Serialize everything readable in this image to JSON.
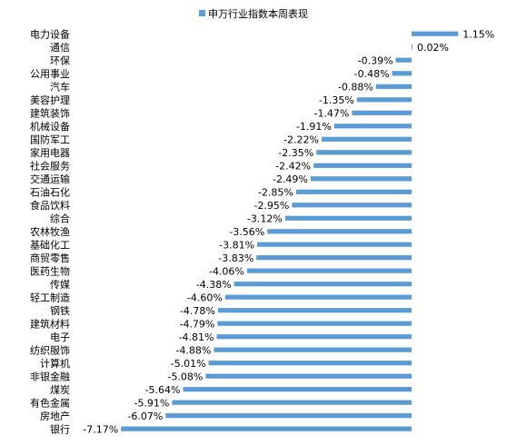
{
  "chart_data": {
    "type": "bar",
    "orientation": "horizontal",
    "legend": {
      "position": "top",
      "label": "申万行业指数本周表现"
    },
    "colors": {
      "bar": "#5B9BD5",
      "text": "#000000"
    },
    "grid": false,
    "value_unit": "%",
    "xlim": [
      -7.17,
      1.15
    ],
    "categories": [
      "电力设备",
      "通信",
      "环保",
      "公用事业",
      "汽车",
      "美容护理",
      "建筑装饰",
      "机械设备",
      "国防军工",
      "家用电器",
      "社会服务",
      "交通运输",
      "石油石化",
      "食品饮料",
      "综合",
      "农林牧渔",
      "基础化工",
      "商贸零售",
      "医药生物",
      "传媒",
      "轻工制造",
      "钢铁",
      "建筑材料",
      "电子",
      "纺织服饰",
      "计算机",
      "非银金融",
      "煤炭",
      "有色金属",
      "房地产",
      "银行"
    ],
    "values": [
      1.15,
      0.02,
      -0.39,
      -0.48,
      -0.88,
      -1.35,
      -1.47,
      -1.91,
      -2.22,
      -2.35,
      -2.42,
      -2.49,
      -2.85,
      -2.95,
      -3.12,
      -3.56,
      -3.81,
      -3.83,
      -4.06,
      -4.38,
      -4.6,
      -4.78,
      -4.79,
      -4.81,
      -4.88,
      -5.01,
      -5.08,
      -5.64,
      -5.91,
      -6.07,
      -7.17
    ],
    "value_labels": [
      "1.15%",
      "0.02%",
      "-0.39%",
      "-0.48%",
      "-0.88%",
      "-1.35%",
      "-1.47%",
      "-1.91%",
      "-2.22%",
      "-2.35%",
      "-2.42%",
      "-2.49%",
      "-2.85%",
      "-2.95%",
      "-3.12%",
      "-3.56%",
      "-3.81%",
      "-3.83%",
      "-4.06%",
      "-4.38%",
      "-4.60%",
      "-4.78%",
      "-4.79%",
      "-4.81%",
      "-4.88%",
      "-5.01%",
      "-5.08%",
      "-5.64%",
      "-5.91%",
      "-6.07%",
      "-7.17%"
    ]
  }
}
